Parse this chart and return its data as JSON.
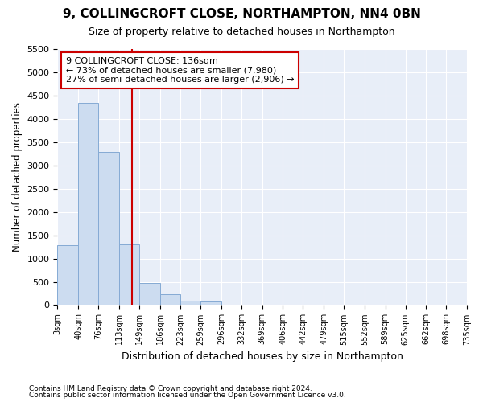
{
  "title": "9, COLLINGCROFT CLOSE, NORTHAMPTON, NN4 0BN",
  "subtitle": "Size of property relative to detached houses in Northampton",
  "xlabel": "Distribution of detached houses by size in Northampton",
  "ylabel": "Number of detached properties",
  "bin_edges": [
    3,
    40,
    76,
    113,
    149,
    186,
    223,
    259,
    296,
    332,
    369,
    406,
    442,
    479,
    515,
    552,
    589,
    625,
    662,
    698,
    735
  ],
  "bar_heights": [
    1280,
    4350,
    3300,
    1300,
    480,
    230,
    90,
    70,
    0,
    0,
    0,
    0,
    0,
    0,
    0,
    0,
    0,
    0,
    0,
    0
  ],
  "bar_color": "#ccdcf0",
  "bar_edge_color": "#85aad4",
  "red_line_x": 136,
  "annotation_text": "9 COLLINGCROFT CLOSE: 136sqm\n← 73% of detached houses are smaller (7,980)\n27% of semi-detached houses are larger (2,906) →",
  "annotation_box_color": "white",
  "annotation_box_edgecolor": "#cc0000",
  "ylim": [
    0,
    5500
  ],
  "yticks": [
    0,
    500,
    1000,
    1500,
    2000,
    2500,
    3000,
    3500,
    4000,
    4500,
    5000,
    5500
  ],
  "footnote1": "Contains HM Land Registry data © Crown copyright and database right 2024.",
  "footnote2": "Contains public sector information licensed under the Open Government Licence v3.0.",
  "fig_bg_color": "#ffffff",
  "plot_bg_color": "#e8eef8"
}
